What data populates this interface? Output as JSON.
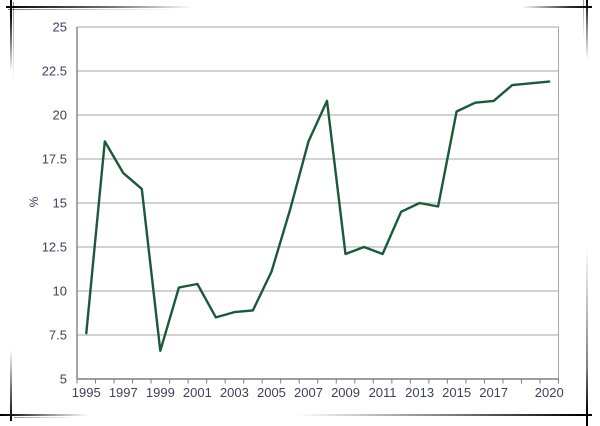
{
  "frame": {
    "style": "sketched corner frame, black strokes fading toward edge middles"
  },
  "axes": {
    "y_unit_label": "%"
  },
  "chart_data": {
    "type": "line",
    "title": "",
    "xlabel": "",
    "ylabel": "%",
    "x": [
      1995,
      1996,
      1997,
      1998,
      1999,
      2000,
      2001,
      2002,
      2003,
      2004,
      2005,
      2006,
      2007,
      2008,
      2009,
      2010,
      2011,
      2012,
      2013,
      2014,
      2015,
      2016,
      2017,
      2018,
      2019,
      2020
    ],
    "values": [
      7.6,
      18.5,
      16.7,
      15.8,
      6.6,
      10.2,
      10.4,
      8.5,
      8.8,
      8.9,
      11.1,
      14.6,
      18.5,
      20.8,
      12.1,
      12.5,
      12.1,
      14.5,
      15.0,
      14.8,
      20.2,
      20.7,
      20.8,
      21.7,
      21.8,
      21.9
    ],
    "ylim": [
      5,
      25
    ],
    "yticks": [
      {
        "value": 25,
        "label": "25"
      },
      {
        "value": 22.5,
        "label": "22.5"
      },
      {
        "value": 20,
        "label": "20"
      },
      {
        "value": 17.5,
        "label": "17.5"
      },
      {
        "value": 15,
        "label": "15"
      },
      {
        "value": 12.5,
        "label": "12.5"
      },
      {
        "value": 10,
        "label": "10"
      },
      {
        "value": 7.5,
        "label": "7.5"
      },
      {
        "value": 5,
        "label": "5"
      }
    ],
    "xtick_labels": [
      "1995",
      "1997",
      "1999",
      "2001",
      "2003",
      "2005",
      "2007",
      "2009",
      "2011",
      "2013",
      "2015",
      "2017",
      "2020"
    ],
    "grid": "horizontal",
    "legend": "none",
    "line_color": "#1a5a38",
    "axis_color": "#7f7f7f",
    "gridline_color": "#a6a6a6",
    "label_color": "#40405c"
  }
}
